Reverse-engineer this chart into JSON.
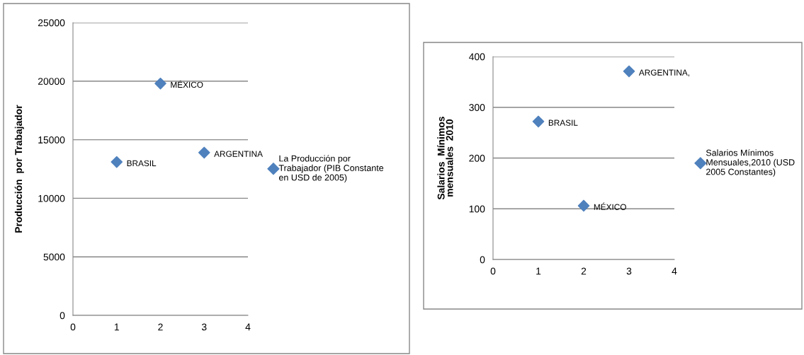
{
  "chart_data": [
    {
      "type": "scatter",
      "ylabel": "Producción  por Trabajador",
      "xlim": [
        0,
        4
      ],
      "xticks": [
        0,
        1,
        2,
        3,
        4
      ],
      "ylim": [
        0,
        25000
      ],
      "yticks": [
        0,
        5000,
        10000,
        15000,
        20000,
        25000
      ],
      "grid": "y",
      "legend": "right",
      "marker": "diamond",
      "series": [
        {
          "name": "La Producción por\nTrabajador (PIB Constante\nen USD de 2005)",
          "color": "#4f81bd",
          "x": [
            1,
            2,
            3
          ],
          "values": [
            13100,
            19800,
            13900
          ]
        }
      ],
      "annotations": [
        {
          "text": "BRASIL",
          "x": 1,
          "y": 13100
        },
        {
          "text": "MÉXICO",
          "x": 2,
          "y": 19800
        },
        {
          "text": "ARGENTINA",
          "x": 3,
          "y": 13900
        }
      ]
    },
    {
      "type": "scatter",
      "ylabel": "Salarios  Mínimos\nmensuales  2010",
      "xlim": [
        0,
        4
      ],
      "xticks": [
        0,
        1,
        2,
        3,
        4
      ],
      "ylim": [
        0,
        400
      ],
      "yticks": [
        0,
        100,
        200,
        300,
        400
      ],
      "grid": "y",
      "legend": "right",
      "marker": "diamond",
      "series": [
        {
          "name": "Salarios Mínimos\nMensuales,2010 (USD\n2005 Constantes)",
          "color": "#4f81bd",
          "x": [
            1,
            2,
            3
          ],
          "values": [
            272,
            106,
            371
          ]
        }
      ],
      "annotations": [
        {
          "text": "BRASIL",
          "x": 1,
          "y": 272
        },
        {
          "text": "MÉXICO",
          "x": 2,
          "y": 106
        },
        {
          "text": "ARGENTINA,",
          "x": 3,
          "y": 371
        }
      ]
    }
  ]
}
